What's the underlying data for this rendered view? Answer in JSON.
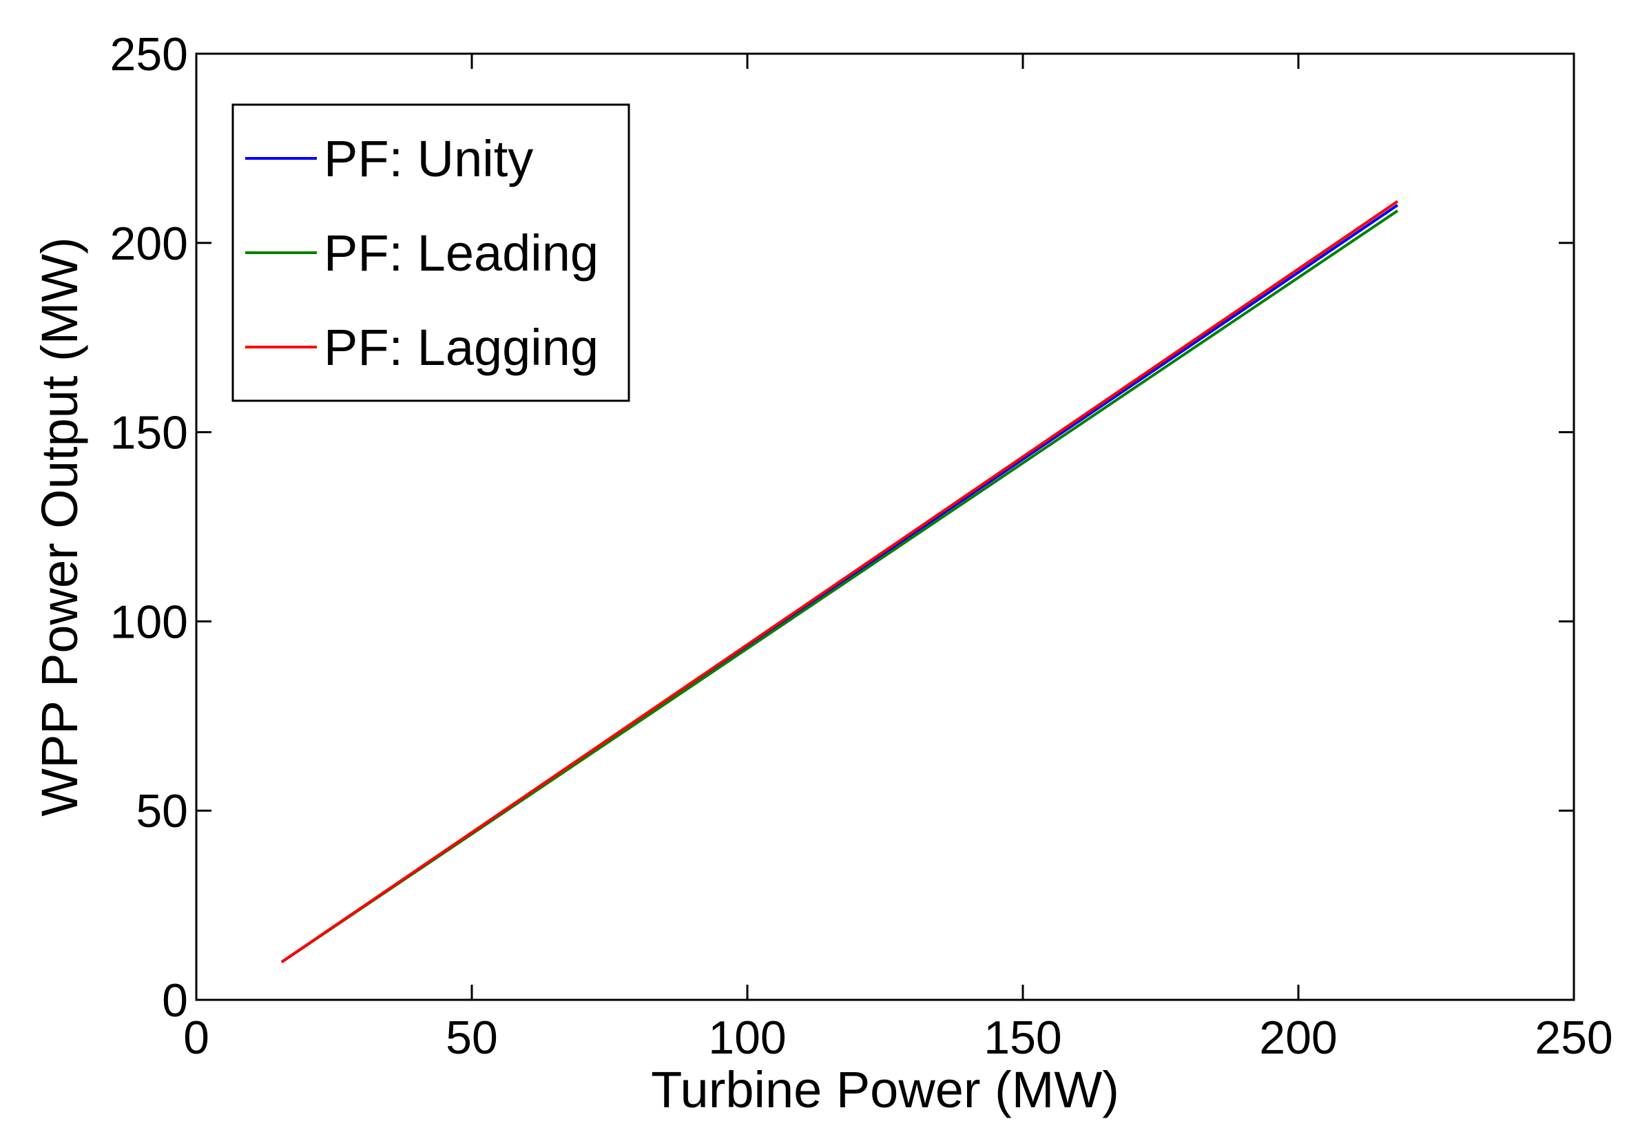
{
  "chart_data": {
    "type": "line",
    "xlabel": "Turbine Power (MW)",
    "ylabel": "WPP Power Output (MW)",
    "xlim": [
      0,
      250
    ],
    "ylim": [
      0,
      250
    ],
    "xticks": [
      0,
      50,
      100,
      150,
      200,
      250
    ],
    "yticks": [
      0,
      50,
      100,
      150,
      200,
      250
    ],
    "grid": false,
    "legend_position": "top-left",
    "series": [
      {
        "name": "PF: Unity",
        "color": "#0000ff",
        "x": [
          15.5,
          218
        ],
        "y": [
          10,
          210
        ]
      },
      {
        "name": "PF: Leading",
        "color": "#008000",
        "x": [
          15.5,
          218
        ],
        "y": [
          10,
          208.5
        ]
      },
      {
        "name": "PF: Lagging",
        "color": "#ff0000",
        "x": [
          15.5,
          218
        ],
        "y": [
          10,
          211
        ]
      }
    ]
  }
}
